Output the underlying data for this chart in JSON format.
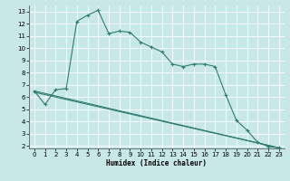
{
  "background_color": "#c8e8e8",
  "grid_color": "#ffffff",
  "line_color": "#2e7d6e",
  "xlabel": "Humidex (Indice chaleur)",
  "ylim": [
    1.8,
    13.5
  ],
  "xlim": [
    -0.5,
    23.5
  ],
  "yticks": [
    2,
    3,
    4,
    5,
    6,
    7,
    8,
    9,
    10,
    11,
    12,
    13
  ],
  "xticks": [
    0,
    1,
    2,
    3,
    4,
    5,
    6,
    7,
    8,
    9,
    10,
    11,
    12,
    13,
    14,
    15,
    16,
    17,
    18,
    19,
    20,
    21,
    22,
    23
  ],
  "curve1_x": [
    0,
    1,
    2,
    3,
    4,
    5,
    6,
    7,
    8,
    9,
    10,
    11,
    12,
    13,
    14,
    15,
    16,
    17,
    18,
    19,
    20,
    21,
    22,
    23
  ],
  "curve1_y": [
    6.5,
    5.4,
    6.6,
    6.7,
    12.2,
    12.7,
    13.1,
    11.2,
    11.4,
    11.3,
    10.5,
    10.1,
    9.7,
    8.7,
    8.5,
    8.7,
    8.7,
    8.5,
    6.2,
    4.1,
    3.3,
    2.3,
    1.95,
    1.85
  ],
  "curve2_x": [
    0,
    23
  ],
  "curve2_y": [
    6.5,
    1.85
  ],
  "curve3_x": [
    0,
    23
  ],
  "curve3_y": [
    6.4,
    1.85
  ],
  "figsize": [
    3.2,
    2.0
  ],
  "dpi": 100
}
